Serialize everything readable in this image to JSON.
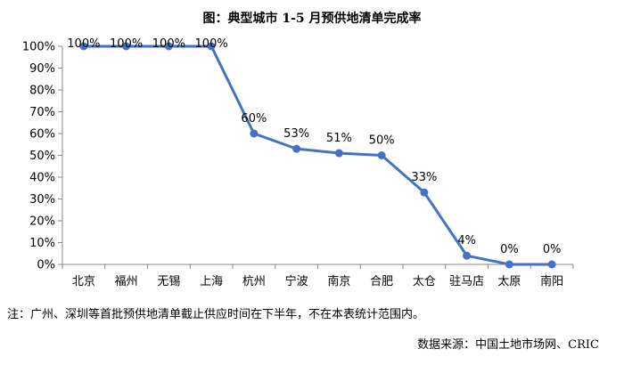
{
  "chart_data": {
    "type": "line",
    "title": "图：典型城市 1-5 月预供地清单完成率",
    "categories": [
      "北京",
      "福州",
      "无锡",
      "上海",
      "杭州",
      "宁波",
      "南京",
      "合肥",
      "太仓",
      "驻马店",
      "太原",
      "南阳"
    ],
    "values": [
      100,
      100,
      100,
      100,
      60,
      53,
      51,
      50,
      33,
      4,
      0,
      0
    ],
    "data_labels": [
      "100%",
      "100%",
      "100%",
      "100%",
      "60%",
      "53%",
      "51%",
      "50%",
      "33%",
      "4%",
      "0%",
      "0%"
    ],
    "y_ticks": [
      "0%",
      "10%",
      "20%",
      "30%",
      "40%",
      "50%",
      "60%",
      "70%",
      "80%",
      "90%",
      "100%"
    ],
    "ylim": [
      0,
      100
    ],
    "y_unit": "%",
    "grid": false,
    "legend": "none",
    "series_color": "#4472C4"
  },
  "footnote": "注：广州、深圳等首批预供地清单截止供应时间在下半年，不在本表统计范围内。",
  "source": "数据来源：中国土地市场网、CRIC"
}
